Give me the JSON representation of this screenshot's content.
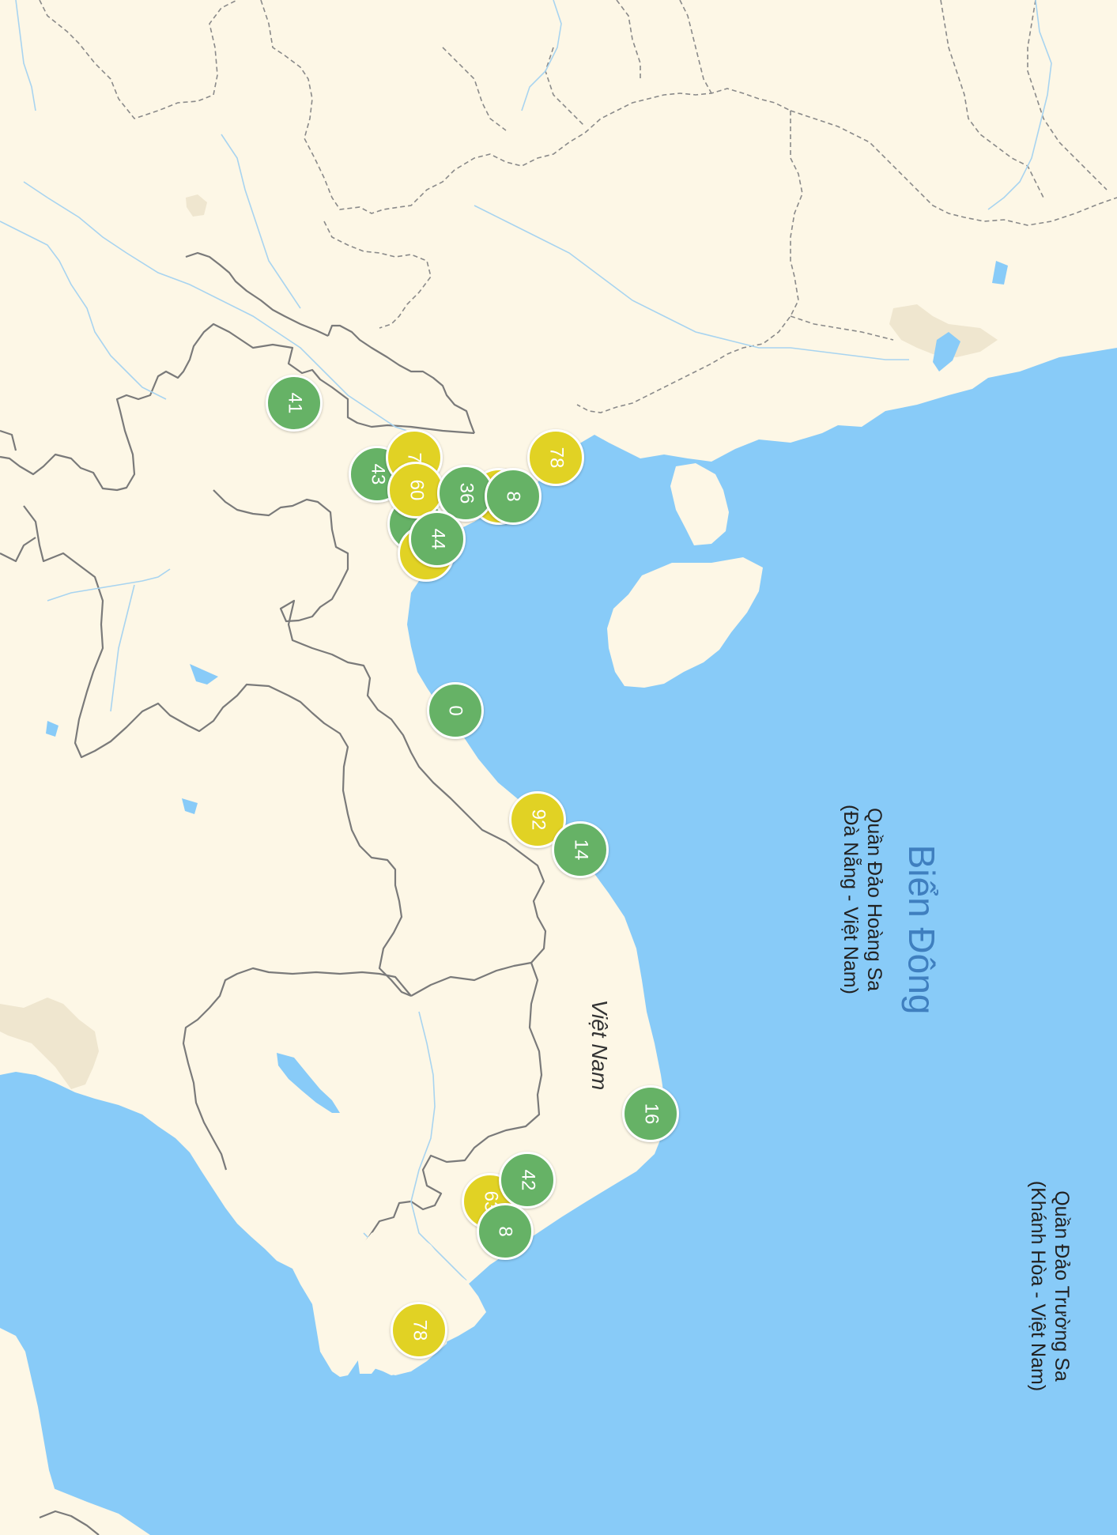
{
  "map": {
    "labels": {
      "sea": "Biển Đông",
      "country": "Việt Nam",
      "paracel": [
        "Quần Đảo Hoàng Sa",
        "(Đà Nẵng - Việt Nam)"
      ],
      "spratly": [
        "Quần Đảo Trường Sa",
        "(Khánh Hòa - Việt Nam)"
      ]
    },
    "colors": {
      "land": "#fdf7e6",
      "water": "#88cbf8",
      "urban": "#efe6cf",
      "aqi_good": "#66b266",
      "aqi_moderate": "#e1d224"
    },
    "markers": [
      {
        "value": "41",
        "level": "good"
      },
      {
        "value": "43",
        "level": "good"
      },
      {
        "value": "7",
        "level": "moderate"
      },
      {
        "value": "",
        "level": "good"
      },
      {
        "value": "",
        "level": "moderate"
      },
      {
        "value": "60",
        "level": "moderate"
      },
      {
        "value": "",
        "level": "moderate"
      },
      {
        "value": "36",
        "level": "good"
      },
      {
        "value": "8",
        "level": "good"
      },
      {
        "value": "44",
        "level": "good"
      },
      {
        "value": "78",
        "level": "moderate"
      },
      {
        "value": "0",
        "level": "good"
      },
      {
        "value": "92",
        "level": "moderate"
      },
      {
        "value": "14",
        "level": "good"
      },
      {
        "value": "16",
        "level": "good"
      },
      {
        "value": "63",
        "level": "moderate"
      },
      {
        "value": "42",
        "level": "good"
      },
      {
        "value": "8",
        "level": "good"
      },
      {
        "value": "78",
        "level": "moderate"
      }
    ]
  }
}
